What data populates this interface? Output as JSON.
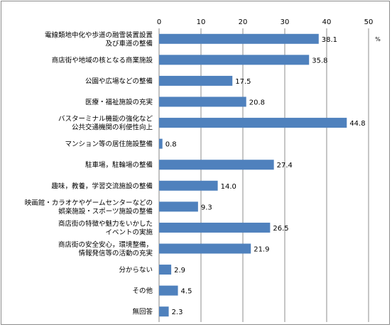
{
  "chart_data": {
    "type": "bar",
    "orientation": "horizontal",
    "unit": "%",
    "xlim": [
      0,
      50
    ],
    "xticks": [
      0,
      10,
      20,
      30,
      40,
      50
    ],
    "grid": true,
    "bar_color": "#4f81bd",
    "categories": [
      [
        "電線類地中化や歩道の融雪装置設置",
        "及び車道の整備"
      ],
      [
        "商店街や地域の核となる商業施設"
      ],
      [
        "公園や広場などの整備"
      ],
      [
        "医療・福祉施設の充実"
      ],
      [
        "バスターミナル機能の強化など",
        "公共交通機関の利便性向上"
      ],
      [
        "マンション等の居住施設整備"
      ],
      [
        "駐車場，駐輪場の整備"
      ],
      [
        "趣味，教養，学習交流施設の整備"
      ],
      [
        "映画館・カラオケやゲームセンターなどの",
        "娯楽施設・スポーツ施設の整備"
      ],
      [
        "商店街の特徴や魅力をいかした",
        "イベントの実施"
      ],
      [
        "商店街の安全安心，環境整備，",
        "情報発信等の活動の充実"
      ],
      [
        "分からない"
      ],
      [
        "その他"
      ],
      [
        "無回答"
      ]
    ],
    "values": [
      38.1,
      35.8,
      17.5,
      20.8,
      44.8,
      0.8,
      27.4,
      14.0,
      9.3,
      26.5,
      21.9,
      2.9,
      4.5,
      2.3
    ],
    "value_labels": [
      "38.1",
      "35.8",
      "17.5",
      "20.8",
      "44.8",
      "0.8",
      "27.4",
      "14.0",
      "9.3",
      "26.5",
      "21.9",
      "2.9",
      "4.5",
      "2.3"
    ]
  }
}
